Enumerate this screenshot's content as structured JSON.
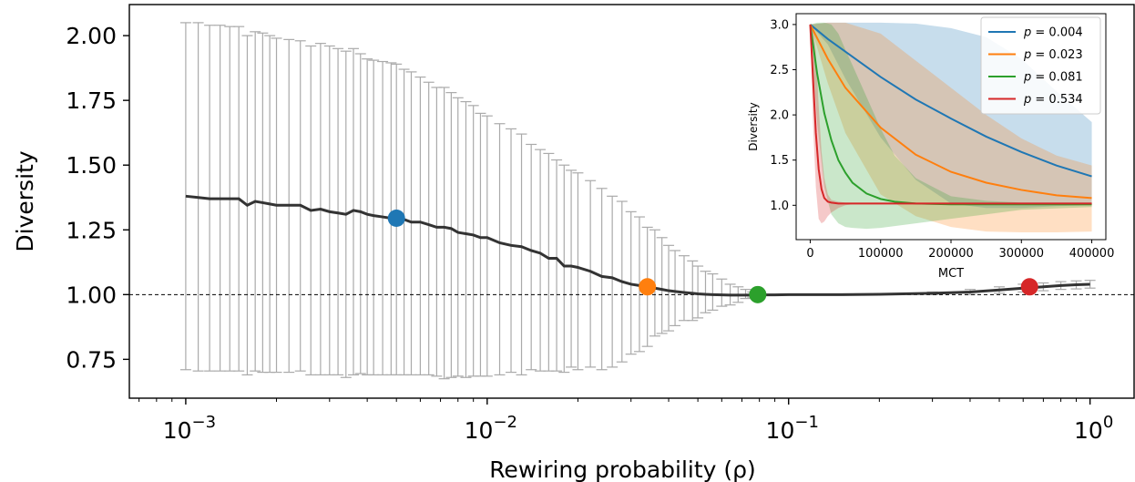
{
  "chart_data": [
    {
      "type": "line",
      "xlabel": "Rewiring probability (ρ)",
      "ylabel": "Diversity",
      "xscale": "log",
      "xlim": [
        0.00065,
        1.4
      ],
      "ylim": [
        0.6,
        2.12
      ],
      "xticks": [
        {
          "base": "10",
          "exp": "−3"
        },
        {
          "base": "10",
          "exp": "−2"
        },
        {
          "base": "10",
          "exp": "−1"
        },
        {
          "base": "10",
          "exp": "0"
        }
      ],
      "yticks": [
        "0.75",
        "1.00",
        "1.25",
        "1.50",
        "1.75",
        "2.00"
      ],
      "reference_line_y": 1.0,
      "series": [
        {
          "x": [
            0.001,
            0.0011,
            0.0012,
            0.0013,
            0.0014,
            0.0015,
            0.0016,
            0.0017,
            0.0018,
            0.0019,
            0.002,
            0.0022,
            0.0024,
            0.0026,
            0.0028,
            0.003,
            0.0032,
            0.0034,
            0.0036,
            0.0038,
            0.004,
            0.0042,
            0.0045,
            0.0048,
            0.005,
            0.0053,
            0.0056,
            0.006,
            0.0064,
            0.0068,
            0.0072,
            0.0076,
            0.008,
            0.0085,
            0.009,
            0.0095,
            0.01,
            0.011,
            0.012,
            0.013,
            0.014,
            0.015,
            0.016,
            0.017,
            0.018,
            0.019,
            0.02,
            0.022,
            0.024,
            0.026,
            0.028,
            0.03,
            0.032,
            0.034,
            0.036,
            0.038,
            0.04,
            0.042,
            0.045,
            0.048,
            0.05,
            0.053,
            0.056,
            0.06,
            0.064,
            0.068,
            0.072,
            0.076,
            0.08,
            0.09,
            0.1,
            0.15,
            0.2,
            0.3,
            0.4,
            0.5,
            0.6,
            0.7,
            0.8,
            0.9,
            1.0
          ],
          "mean": [
            1.38,
            1.375,
            1.37,
            1.37,
            1.37,
            1.37,
            1.345,
            1.36,
            1.355,
            1.35,
            1.345,
            1.345,
            1.345,
            1.325,
            1.33,
            1.32,
            1.315,
            1.31,
            1.325,
            1.32,
            1.31,
            1.305,
            1.3,
            1.295,
            1.295,
            1.29,
            1.28,
            1.28,
            1.27,
            1.26,
            1.26,
            1.255,
            1.24,
            1.235,
            1.23,
            1.22,
            1.22,
            1.2,
            1.19,
            1.185,
            1.17,
            1.16,
            1.14,
            1.14,
            1.11,
            1.11,
            1.105,
            1.09,
            1.07,
            1.065,
            1.05,
            1.04,
            1.035,
            1.03,
            1.025,
            1.02,
            1.015,
            1.012,
            1.008,
            1.005,
            1.003,
            1.001,
            1.0,
            0.999,
            0.998,
            0.998,
            0.998,
            0.999,
            0.999,
            0.999,
            1.0,
            1.0,
            1.001,
            1.005,
            1.01,
            1.018,
            1.025,
            1.03,
            1.035,
            1.038,
            1.04
          ],
          "upper": [
            2.05,
            2.05,
            2.04,
            2.04,
            2.035,
            2.035,
            2.0,
            2.015,
            2.01,
            2.0,
            1.99,
            1.985,
            1.98,
            1.96,
            1.97,
            1.96,
            1.95,
            1.94,
            1.95,
            1.93,
            1.91,
            1.905,
            1.9,
            1.895,
            1.89,
            1.87,
            1.86,
            1.84,
            1.82,
            1.8,
            1.8,
            1.78,
            1.76,
            1.745,
            1.73,
            1.7,
            1.69,
            1.66,
            1.64,
            1.62,
            1.58,
            1.56,
            1.545,
            1.52,
            1.5,
            1.48,
            1.47,
            1.44,
            1.41,
            1.38,
            1.36,
            1.32,
            1.3,
            1.26,
            1.25,
            1.22,
            1.19,
            1.17,
            1.15,
            1.13,
            1.11,
            1.09,
            1.08,
            1.06,
            1.04,
            1.03,
            1.02,
            1.01,
            1.0,
            1.0,
            1.0,
            1.0,
            1.002,
            1.01,
            1.02,
            1.03,
            1.04,
            1.045,
            1.05,
            1.053,
            1.055
          ],
          "lower": [
            0.71,
            0.705,
            0.705,
            0.705,
            0.705,
            0.705,
            0.69,
            0.705,
            0.7,
            0.7,
            0.7,
            0.7,
            0.705,
            0.69,
            0.69,
            0.69,
            0.69,
            0.68,
            0.69,
            0.695,
            0.69,
            0.69,
            0.69,
            0.69,
            0.69,
            0.69,
            0.69,
            0.69,
            0.69,
            0.685,
            0.675,
            0.68,
            0.685,
            0.68,
            0.685,
            0.685,
            0.685,
            0.69,
            0.7,
            0.69,
            0.71,
            0.705,
            0.705,
            0.705,
            0.7,
            0.72,
            0.71,
            0.72,
            0.71,
            0.72,
            0.74,
            0.77,
            0.78,
            0.8,
            0.84,
            0.85,
            0.86,
            0.88,
            0.9,
            0.9,
            0.91,
            0.93,
            0.94,
            0.955,
            0.96,
            0.97,
            0.985,
            0.99,
            0.998,
            0.998,
            0.999,
            1.0,
            1.0,
            1.0,
            1.0,
            1.005,
            1.01,
            1.015,
            1.02,
            1.022,
            1.025
          ]
        }
      ],
      "highlight_points": [
        {
          "x": 0.005,
          "y": 1.295,
          "color": "#1f77b4"
        },
        {
          "x": 0.034,
          "y": 1.03,
          "color": "#ff7f0e"
        },
        {
          "x": 0.079,
          "y": 1.0,
          "color": "#2ca02c"
        },
        {
          "x": 0.63,
          "y": 1.03,
          "color": "#d62728"
        }
      ]
    },
    {
      "type": "line",
      "xlabel": "MCT",
      "ylabel": "Diversity",
      "xlim": [
        -20000,
        420000
      ],
      "ylim": [
        0.62,
        3.12
      ],
      "xticks": [
        "0",
        "100000",
        "200000",
        "300000",
        "400000"
      ],
      "yticks": [
        "1.0",
        "1.5",
        "2.0",
        "2.5",
        "3.0"
      ],
      "legend_position": "upper-right",
      "series": [
        {
          "name_prefix": "p",
          "name_value": "= 0.004",
          "color": "#1f77b4",
          "x": [
            0,
            25000,
            50000,
            100000,
            150000,
            200000,
            250000,
            300000,
            350000,
            400000
          ],
          "mean": [
            3.0,
            2.84,
            2.7,
            2.42,
            2.17,
            1.96,
            1.76,
            1.59,
            1.44,
            1.32
          ],
          "upper": [
            3.0,
            3.02,
            3.02,
            3.02,
            3.01,
            2.96,
            2.86,
            2.62,
            2.26,
            1.92
          ],
          "lower": [
            3.0,
            2.78,
            2.4,
            1.75,
            1.28,
            1.02,
            0.97,
            0.97,
            0.99,
            1.0
          ]
        },
        {
          "name_prefix": "p",
          "name_value": "= 0.023",
          "color": "#ff7f0e",
          "x": [
            0,
            25000,
            50000,
            100000,
            150000,
            200000,
            250000,
            300000,
            350000,
            400000
          ],
          "mean": [
            3.0,
            2.62,
            2.3,
            1.86,
            1.56,
            1.37,
            1.25,
            1.17,
            1.11,
            1.08
          ],
          "upper": [
            3.0,
            3.02,
            3.02,
            2.9,
            2.6,
            2.3,
            2.0,
            1.74,
            1.55,
            1.44
          ],
          "lower": [
            3.0,
            2.35,
            1.8,
            1.12,
            0.88,
            0.76,
            0.71,
            0.7,
            0.7,
            0.71
          ]
        },
        {
          "name_prefix": "p",
          "name_value": "= 0.081",
          "color": "#2ca02c",
          "x": [
            0,
            10000,
            20000,
            30000,
            40000,
            50000,
            60000,
            80000,
            100000,
            120000,
            150000,
            200000,
            250000,
            300000,
            400000
          ],
          "mean": [
            3.0,
            2.45,
            2.02,
            1.72,
            1.5,
            1.36,
            1.25,
            1.13,
            1.07,
            1.04,
            1.02,
            1.01,
            1.01,
            1.01,
            1.01
          ],
          "upper": [
            3.0,
            3.02,
            3.02,
            3.0,
            2.9,
            2.72,
            2.55,
            2.2,
            1.85,
            1.55,
            1.3,
            1.1,
            1.05,
            1.03,
            1.03
          ],
          "lower": [
            3.0,
            1.9,
            1.2,
            0.9,
            0.8,
            0.76,
            0.75,
            0.74,
            0.75,
            0.77,
            0.8,
            0.85,
            0.9,
            0.95,
            0.98
          ]
        },
        {
          "name_prefix": "p",
          "name_value": "= 0.534",
          "color": "#d62728",
          "x": [
            0,
            4000,
            8000,
            12000,
            16000,
            20000,
            25000,
            30000,
            40000,
            50000,
            60000,
            80000,
            100000,
            200000,
            400000
          ],
          "mean": [
            3.0,
            2.4,
            1.8,
            1.4,
            1.18,
            1.08,
            1.04,
            1.03,
            1.02,
            1.02,
            1.02,
            1.02,
            1.02,
            1.02,
            1.02
          ],
          "upper": [
            3.0,
            2.95,
            2.7,
            2.1,
            1.6,
            1.3,
            1.12,
            1.06,
            1.04,
            1.03,
            1.03,
            1.03,
            1.03,
            1.03,
            1.03
          ],
          "lower": [
            3.0,
            1.9,
            1.2,
            0.85,
            0.8,
            0.82,
            0.88,
            0.92,
            0.97,
            1.0,
            1.01,
            1.01,
            1.01,
            1.01,
            1.01
          ]
        }
      ]
    }
  ]
}
